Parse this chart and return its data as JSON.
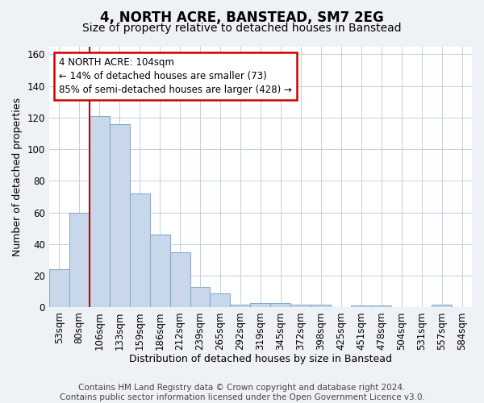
{
  "title": "4, NORTH ACRE, BANSTEAD, SM7 2EG",
  "subtitle": "Size of property relative to detached houses in Banstead",
  "xlabel": "Distribution of detached houses by size in Banstead",
  "ylabel": "Number of detached properties",
  "bar_labels": [
    "53sqm",
    "80sqm",
    "106sqm",
    "133sqm",
    "159sqm",
    "186sqm",
    "212sqm",
    "239sqm",
    "265sqm",
    "292sqm",
    "319sqm",
    "345sqm",
    "372sqm",
    "398sqm",
    "425sqm",
    "451sqm",
    "478sqm",
    "504sqm",
    "531sqm",
    "557sqm",
    "584sqm"
  ],
  "bar_values": [
    24,
    60,
    121,
    116,
    72,
    46,
    35,
    13,
    9,
    2,
    3,
    3,
    2,
    2,
    0,
    1,
    1,
    0,
    0,
    2,
    0
  ],
  "bar_color": "#c8d8ea",
  "bar_edge_color": "#8aaac8",
  "bar_edge_width": 0.8,
  "vline_index": 2,
  "vline_color": "#cc0000",
  "annotation_line1": "4 NORTH ACRE: 104sqm",
  "annotation_line2": "← 14% of detached houses are smaller (73)",
  "annotation_line3": "85% of semi-detached houses are larger (428) →",
  "annotation_box_color": "#ffffff",
  "annotation_box_edge": "#cc0000",
  "ylim": [
    0,
    165
  ],
  "yticks": [
    0,
    20,
    40,
    60,
    80,
    100,
    120,
    140,
    160
  ],
  "bg_color": "#eef2f7",
  "plot_bg_color": "#ffffff",
  "grid_color": "#c5cfe0",
  "footer": "Contains HM Land Registry data © Crown copyright and database right 2024.\nContains public sector information licensed under the Open Government Licence v3.0.",
  "footer_fontsize": 7.5,
  "title_fontsize": 12,
  "subtitle_fontsize": 10,
  "xlabel_fontsize": 9,
  "ylabel_fontsize": 9,
  "tick_fontsize": 8.5,
  "annot_fontsize": 8.5
}
